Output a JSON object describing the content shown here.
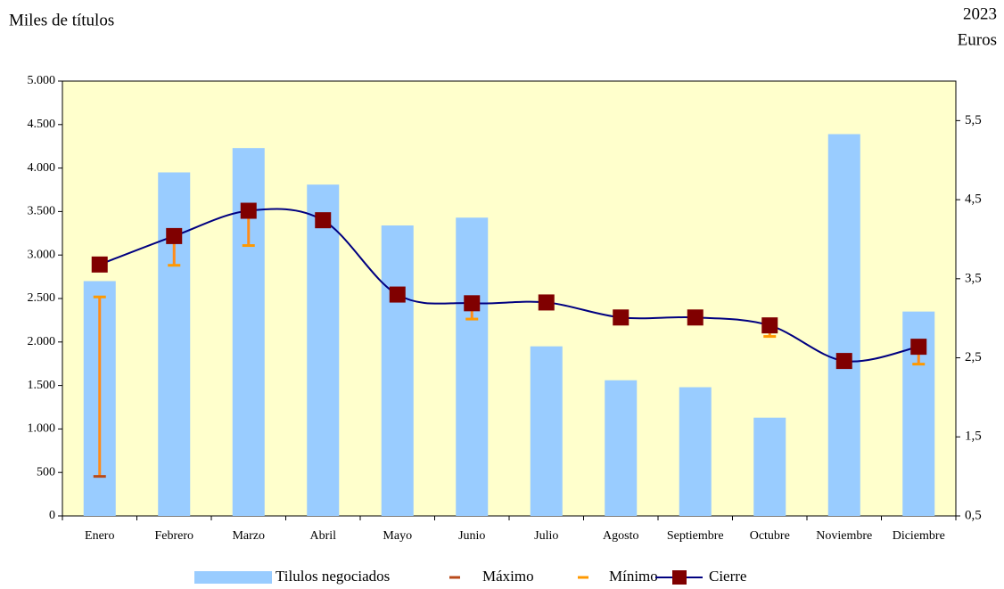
{
  "chart_data": {
    "type": "bar-line",
    "y_label": "Miles de títulos",
    "annotation": "2023",
    "y2_label": "Euros",
    "categories": [
      "Enero",
      "Febrero",
      "Marzo",
      "Abril",
      "Mayo",
      "Junio",
      "Julio",
      "Agosto",
      "Septiembre",
      "Octubre",
      "Noviembre",
      "Diciembre"
    ],
    "series": [
      {
        "name": "Tilulos negociados",
        "kind": "bar",
        "axis": "y",
        "color": "#99ccff",
        "values": [
          2700,
          3950,
          4230,
          3810,
          3340,
          3430,
          1950,
          1560,
          1480,
          1130,
          4390,
          2350
        ]
      },
      {
        "name": "Máximo",
        "kind": "max",
        "axis": "y2",
        "color": "#b84a1a",
        "values": [
          1.0,
          4.1,
          4.4,
          4.27,
          3.33,
          3.22,
          3.22,
          3.03,
          3.03,
          2.95,
          2.48,
          2.7
        ]
      },
      {
        "name": "Mínimo",
        "kind": "min",
        "axis": "y2",
        "color": "#ff9900",
        "values": [
          3.27,
          3.67,
          3.92,
          4.19,
          3.27,
          2.99,
          3.18,
          2.99,
          2.99,
          2.77,
          2.45,
          2.42
        ]
      },
      {
        "name": "Cierre",
        "kind": "line",
        "axis": "y2",
        "color": "#000080",
        "marker_color": "#800000",
        "values": [
          3.68,
          4.04,
          4.36,
          4.24,
          3.3,
          3.19,
          3.2,
          3.01,
          3.01,
          2.91,
          2.46,
          2.64
        ]
      }
    ],
    "error_color": "#ff8c1a",
    "plot_background": "#ffffcc",
    "ylim": [
      0,
      5000
    ],
    "yticks": [
      0,
      500,
      {
        "value": 1000,
        "label": "1.000"
      },
      {
        "value": 1500,
        "label": "1.500"
      },
      {
        "value": 2000,
        "label": "2.000"
      },
      {
        "value": 2500,
        "label": "2.500"
      },
      {
        "value": 3000,
        "label": "3.000"
      },
      {
        "value": 3500,
        "label": "3.500"
      },
      {
        "value": 4000,
        "label": "4.000"
      },
      {
        "value": 4500,
        "label": "4.500"
      },
      {
        "value": 5000,
        "label": "5.000"
      }
    ],
    "y2lim": [
      0.5,
      6.0
    ],
    "y2ticks": [
      {
        "value": 0.5,
        "label": "0,5"
      },
      {
        "value": 1.5,
        "label": "1,5"
      },
      {
        "value": 2.5,
        "label": "2,5"
      },
      {
        "value": 3.5,
        "label": "3,5"
      },
      {
        "value": 4.5,
        "label": "4,5"
      },
      {
        "value": 5.5,
        "label": "5,5"
      }
    ],
    "legend": "bottom"
  }
}
